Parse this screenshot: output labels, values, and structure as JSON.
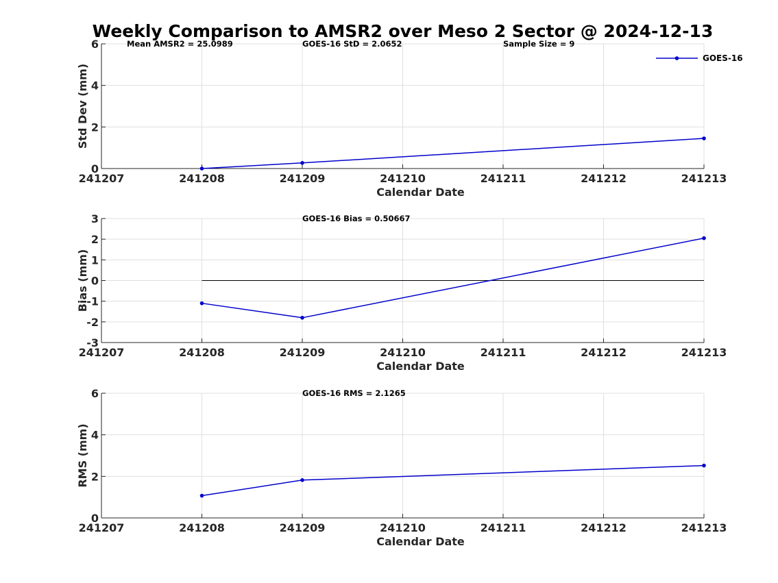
{
  "figure": {
    "title": "Weekly Comparison to AMSR2 over Meso 2 Sector @ 2024-12-13"
  },
  "colors": {
    "series": "#0000cc",
    "grid": "#dfdfdf",
    "axis": "#262626",
    "zero_line": "#000000"
  },
  "chart_data": [
    {
      "type": "line",
      "name": "std-dev",
      "title": "",
      "xlabel": "Calendar Date",
      "ylabel": "Std Dev (mm)",
      "x_ticks": [
        "241207",
        "241208",
        "241209",
        "241210",
        "241211",
        "241212",
        "241213"
      ],
      "xlim": [
        0,
        6
      ],
      "ylim": [
        0,
        6
      ],
      "y_ticks": [
        0,
        2,
        4,
        6
      ],
      "grid": true,
      "legend": {
        "entries": [
          "GOES-16"
        ],
        "position": "top-right"
      },
      "annotations": [
        "Mean AMSR2 = 25.0989",
        "GOES-16 StD = 2.0652",
        "Sample Size = 9"
      ],
      "series": [
        {
          "name": "GOES-16",
          "x": [
            1,
            2,
            6
          ],
          "values": [
            0.0,
            0.27,
            1.45
          ]
        }
      ]
    },
    {
      "type": "line",
      "name": "bias",
      "title": "",
      "xlabel": "Calendar Date",
      "ylabel": "Bias (mm)",
      "x_ticks": [
        "241207",
        "241208",
        "241209",
        "241210",
        "241211",
        "241212",
        "241213"
      ],
      "xlim": [
        0,
        6
      ],
      "ylim": [
        -3,
        3
      ],
      "y_ticks": [
        -3,
        -2,
        -1,
        0,
        1,
        2,
        3
      ],
      "grid": true,
      "zero_line": {
        "y": 0,
        "x_range": [
          1,
          6
        ]
      },
      "annotations": [
        "GOES-16 Bias  = 0.50667"
      ],
      "series": [
        {
          "name": "GOES-16",
          "x": [
            1,
            2,
            6
          ],
          "values": [
            -1.1,
            -1.8,
            2.05
          ]
        }
      ]
    },
    {
      "type": "line",
      "name": "rms",
      "title": "",
      "xlabel": "Calendar Date",
      "ylabel": "RMS (mm)",
      "x_ticks": [
        "241207",
        "241208",
        "241209",
        "241210",
        "241211",
        "241212",
        "241213"
      ],
      "xlim": [
        0,
        6
      ],
      "ylim": [
        0,
        6
      ],
      "y_ticks": [
        0,
        2,
        4,
        6
      ],
      "grid": true,
      "annotations": [
        "GOES-16 RMS = 2.1265"
      ],
      "series": [
        {
          "name": "GOES-16",
          "x": [
            1,
            2,
            6
          ],
          "values": [
            1.07,
            1.82,
            2.52
          ]
        }
      ]
    }
  ]
}
